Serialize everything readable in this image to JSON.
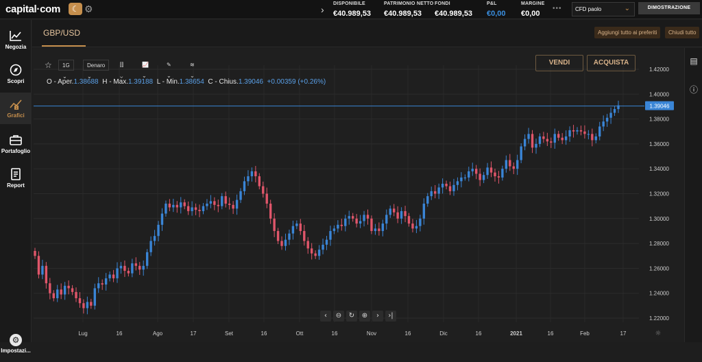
{
  "topbar": {
    "logo": "capital·com",
    "stats": [
      {
        "label": "DISPONIBILE",
        "value": "€40.989,53",
        "accent": false
      },
      {
        "label": "PATRIMONIO NETTO",
        "value": "€40.989,53",
        "accent": false
      },
      {
        "label": "FONDI",
        "value": "€40.989,53",
        "accent": false
      },
      {
        "label": "P&L",
        "value": "€0,00",
        "accent": true
      },
      {
        "label": "MARGINE",
        "value": "€0,00",
        "accent": false
      }
    ],
    "dots": "•••",
    "account": "CFD paolo",
    "mode_button": "DIMOSTRAZIONE"
  },
  "sidebar": {
    "items": [
      {
        "label": "Negozia",
        "icon": "chart-up-icon"
      },
      {
        "label": "Scopri",
        "icon": "compass-icon"
      },
      {
        "label": "Grafici",
        "icon": "charts-icon",
        "active": true
      },
      {
        "label": "Portafoglio",
        "icon": "briefcase-icon"
      },
      {
        "label": "Report",
        "icon": "report-icon"
      }
    ],
    "settings_label": "Impostazi..."
  },
  "header": {
    "instrument_tab": "GBP/USD",
    "add_favorites": "Aggiungi tutto ai preferiti",
    "close_tabs": "Chiudi tutto"
  },
  "toolbar": {
    "timeframe": "1G",
    "price_type": "Denaro",
    "sell": "VENDI",
    "buy": "ACQUISTA"
  },
  "ohlc": {
    "open_label": "O - Aper.",
    "open": "1.38688",
    "high_label": "H - Max.",
    "high": "1.39188",
    "low_label": "L - Min.",
    "low": "1.38654",
    "close_label": "C - Chius.",
    "close": "1.39046",
    "change": "+0.00359 (+0.26%)"
  },
  "colors": {
    "accent": "#c68f4d",
    "up": "#3a85d6",
    "down": "#e0566a",
    "price_line": "#3a85d6"
  },
  "chart_data": {
    "type": "candlestick",
    "instrument": "GBP/USD",
    "y_ticks": [
      "1.42000",
      "1.40000",
      "1.38000",
      "1.36000",
      "1.34000",
      "1.32000",
      "1.30000",
      "1.28000",
      "1.26000",
      "1.24000",
      "1.22000"
    ],
    "ylim": [
      1.22,
      1.42
    ],
    "x_ticks": [
      "Lug",
      "16",
      "Ago",
      "17",
      "Set",
      "16",
      "Ott",
      "16",
      "Nov",
      "16",
      "Dic",
      "16",
      "2021",
      "16",
      "Feb",
      "17"
    ],
    "current_price": "1.39046",
    "closes": [
      1.27,
      1.255,
      1.262,
      1.248,
      1.24,
      1.236,
      1.243,
      1.239,
      1.246,
      1.244,
      1.241,
      1.236,
      1.232,
      1.228,
      1.233,
      1.23,
      1.244,
      1.248,
      1.247,
      1.252,
      1.255,
      1.252,
      1.26,
      1.262,
      1.258,
      1.256,
      1.264,
      1.262,
      1.259,
      1.262,
      1.273,
      1.282,
      1.286,
      1.295,
      1.304,
      1.312,
      1.309,
      1.311,
      1.309,
      1.313,
      1.31,
      1.306,
      1.309,
      1.307,
      1.306,
      1.31,
      1.312,
      1.314,
      1.311,
      1.31,
      1.318,
      1.312,
      1.311,
      1.308,
      1.315,
      1.322,
      1.33,
      1.334,
      1.338,
      1.334,
      1.326,
      1.32,
      1.312,
      1.3,
      1.29,
      1.282,
      1.278,
      1.283,
      1.288,
      1.294,
      1.296,
      1.29,
      1.282,
      1.276,
      1.272,
      1.27,
      1.275,
      1.279,
      1.283,
      1.29,
      1.292,
      1.295,
      1.294,
      1.3,
      1.302,
      1.3,
      1.296,
      1.298,
      1.303,
      1.3,
      1.29,
      1.292,
      1.29,
      1.296,
      1.303,
      1.308,
      1.305,
      1.3,
      1.306,
      1.302,
      1.296,
      1.292,
      1.294,
      1.3,
      1.312,
      1.318,
      1.322,
      1.32,
      1.325,
      1.328,
      1.326,
      1.322,
      1.327,
      1.33,
      1.333,
      1.333,
      1.338,
      1.34,
      1.336,
      1.331,
      1.335,
      1.341,
      1.337,
      1.334,
      1.333,
      1.34,
      1.347,
      1.342,
      1.34,
      1.347,
      1.358,
      1.364,
      1.368,
      1.357,
      1.36,
      1.366,
      1.364,
      1.362,
      1.361,
      1.368,
      1.365,
      1.363,
      1.366,
      1.371,
      1.37,
      1.371,
      1.37,
      1.368,
      1.368,
      1.363,
      1.366,
      1.374,
      1.378,
      1.381,
      1.385,
      1.388,
      1.391
    ]
  }
}
